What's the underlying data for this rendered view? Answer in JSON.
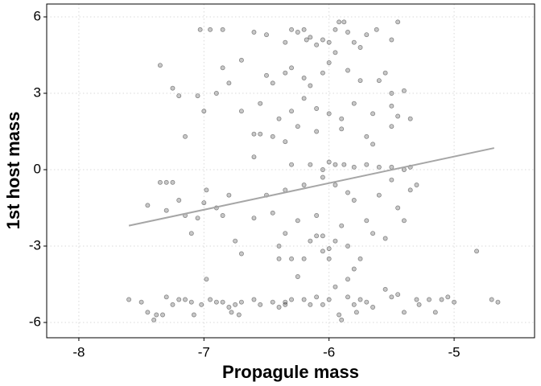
{
  "chart_data": {
    "type": "scatter",
    "x_label": "Propagule mass",
    "y_label": "1st host mass",
    "xlim": [
      -8.257,
      -4.357
    ],
    "ylim": [
      -6.6,
      6.505
    ],
    "xticks": [
      -8,
      -7,
      -6,
      -5
    ],
    "yticks": [
      -6,
      -3,
      0,
      3,
      6
    ],
    "grid": true,
    "color": "#000000",
    "x": [
      -7.6,
      -7.5,
      -7.45,
      -7.4,
      -7.38,
      -7.33,
      -7.3,
      -7.25,
      -7.2,
      -7.15,
      -7.1,
      -7.08,
      -7.02,
      -6.98,
      -6.95,
      -6.9,
      -6.85,
      -6.8,
      -6.78,
      -6.75,
      -6.72,
      -6.7,
      -6.6,
      -6.55,
      -6.45,
      -6.4,
      -6.35,
      -6.35,
      -6.3,
      -6.2,
      -6.15,
      -6.1,
      -6.05,
      -6.0,
      -5.92,
      -5.9,
      -5.85,
      -5.8,
      -5.78,
      -5.75,
      -5.7,
      -5.65,
      -5.55,
      -5.5,
      -5.45,
      -5.4,
      -5.3,
      -5.28,
      -5.2,
      -5.15,
      -5.1,
      -5.05,
      -5.0,
      -4.7,
      -4.65,
      -4.82,
      -7.03,
      -6.95,
      -6.85,
      -6.6,
      -6.5,
      -6.35,
      -6.3,
      -6.25,
      -6.2,
      -6.18,
      -6.15,
      -6.1,
      -6.05,
      -6.0,
      -5.95,
      -5.92,
      -5.88,
      -5.85,
      -5.8,
      -5.75,
      -5.7,
      -5.62,
      -5.5,
      -5.45,
      -7.35,
      -6.85,
      -6.8,
      -6.9,
      -6.7,
      -6.5,
      -6.45,
      -6.35,
      -6.3,
      -6.2,
      -6.15,
      -6.05,
      -6.0,
      -5.95,
      -5.85,
      -5.75,
      -5.6,
      -5.55,
      -5.5,
      -5.4,
      -7.25,
      -7.2,
      -7.05,
      -7.0,
      -6.7,
      -6.55,
      -6.4,
      -6.3,
      -6.2,
      -6.1,
      -6.0,
      -5.9,
      -5.8,
      -5.65,
      -5.5,
      -5.45,
      -5.35,
      -7.15,
      -6.6,
      -6.55,
      -6.45,
      -6.35,
      -6.25,
      -6.1,
      -5.9,
      -5.7,
      -5.65,
      -5.5,
      -6.6,
      -6.3,
      -6.15,
      -6.05,
      -6.0,
      -5.95,
      -5.88,
      -5.8,
      -5.7,
      -5.6,
      -5.5,
      -5.4,
      -5.35,
      -7.35,
      -7.3,
      -7.25,
      -7.45,
      -7.2,
      -7.3,
      -7.15,
      -7.1,
      -7.05,
      -7.0,
      -6.98,
      -6.9,
      -6.85,
      -6.8,
      -6.75,
      -6.7,
      -6.6,
      -6.5,
      -6.45,
      -6.4,
      -6.35,
      -6.3,
      -6.25,
      -6.2,
      -6.15,
      -6.1,
      -6.05,
      -6.0,
      -5.95,
      -5.9,
      -5.85,
      -5.8,
      -5.75,
      -5.7,
      -5.65,
      -5.6,
      -5.55,
      -5.5,
      -5.45,
      -5.4,
      -5.35,
      -5.3,
      -6.35,
      -6.2,
      -6.05,
      -5.95,
      -5.85,
      -5.85,
      -5.8,
      -6.05,
      -6.25,
      -6.4,
      -5.95,
      -6.1,
      -6.0
    ],
    "y": [
      -5.1,
      -5.2,
      -5.6,
      -5.9,
      -5.7,
      -5.7,
      -5.0,
      -5.3,
      -5.1,
      -5.1,
      -5.2,
      -5.7,
      -5.3,
      -4.3,
      -5.1,
      -5.2,
      -5.2,
      -5.4,
      -5.6,
      -5.3,
      -5.7,
      -5.2,
      -5.1,
      -5.3,
      -5.2,
      -5.4,
      -5.2,
      -5.3,
      -5.1,
      -5.1,
      -5.3,
      -5.0,
      -5.3,
      -5.1,
      -5.7,
      -5.9,
      -5.0,
      -5.3,
      -5.6,
      -5.1,
      -5.2,
      -5.4,
      -4.7,
      -5.0,
      -4.9,
      -5.6,
      -5.1,
      -5.3,
      -5.1,
      -5.6,
      -5.1,
      -5.0,
      -5.2,
      -5.1,
      -5.2,
      -3.2,
      5.5,
      5.5,
      5.5,
      5.4,
      5.3,
      5.0,
      5.5,
      5.4,
      5.5,
      5.1,
      5.2,
      4.9,
      5.1,
      5.0,
      5.5,
      5.8,
      5.8,
      5.4,
      5.0,
      4.8,
      5.3,
      5.5,
      5.1,
      5.8,
      4.1,
      4.0,
      3.4,
      3.0,
      4.3,
      3.7,
      3.4,
      3.8,
      4.0,
      3.6,
      3.3,
      3.8,
      4.2,
      4.6,
      3.9,
      3.5,
      3.5,
      3.8,
      3.0,
      3.1,
      3.2,
      2.9,
      2.9,
      2.3,
      2.3,
      2.6,
      2.0,
      2.3,
      2.8,
      2.4,
      2.2,
      2.0,
      2.6,
      2.2,
      2.5,
      2.1,
      2.0,
      1.3,
      1.4,
      1.4,
      1.3,
      1.1,
      1.7,
      1.5,
      1.6,
      1.3,
      1.0,
      1.7,
      0.5,
      0.2,
      0.2,
      0.0,
      0.3,
      0.2,
      0.2,
      0.1,
      0.2,
      0.1,
      0.1,
      0.0,
      0.1,
      -0.5,
      -0.5,
      -0.5,
      -1.4,
      -1.2,
      -1.6,
      -1.8,
      -2.5,
      -1.9,
      -1.3,
      -0.8,
      -1.5,
      -1.8,
      -1.0,
      -2.8,
      -3.3,
      -1.9,
      -1.0,
      -1.7,
      -3.0,
      -2.5,
      -3.5,
      -2.0,
      -3.5,
      -2.8,
      -1.8,
      -2.6,
      -3.5,
      -2.8,
      -2.2,
      -3.0,
      -1.2,
      -3.5,
      -2.0,
      -2.5,
      -1.0,
      -2.7,
      -0.4,
      -1.5,
      -2.0,
      -0.8,
      -0.6,
      -0.8,
      -0.6,
      -0.3,
      -0.6,
      -0.9,
      -4.3,
      -3.9,
      -3.2,
      -4.2,
      -3.5,
      -4.6,
      -2.6,
      -3.1
    ],
    "fit_line": {
      "color": "#a6a6a6",
      "x": [
        -7.6,
        -4.68
      ],
      "y": [
        -2.2,
        0.85
      ]
    }
  }
}
